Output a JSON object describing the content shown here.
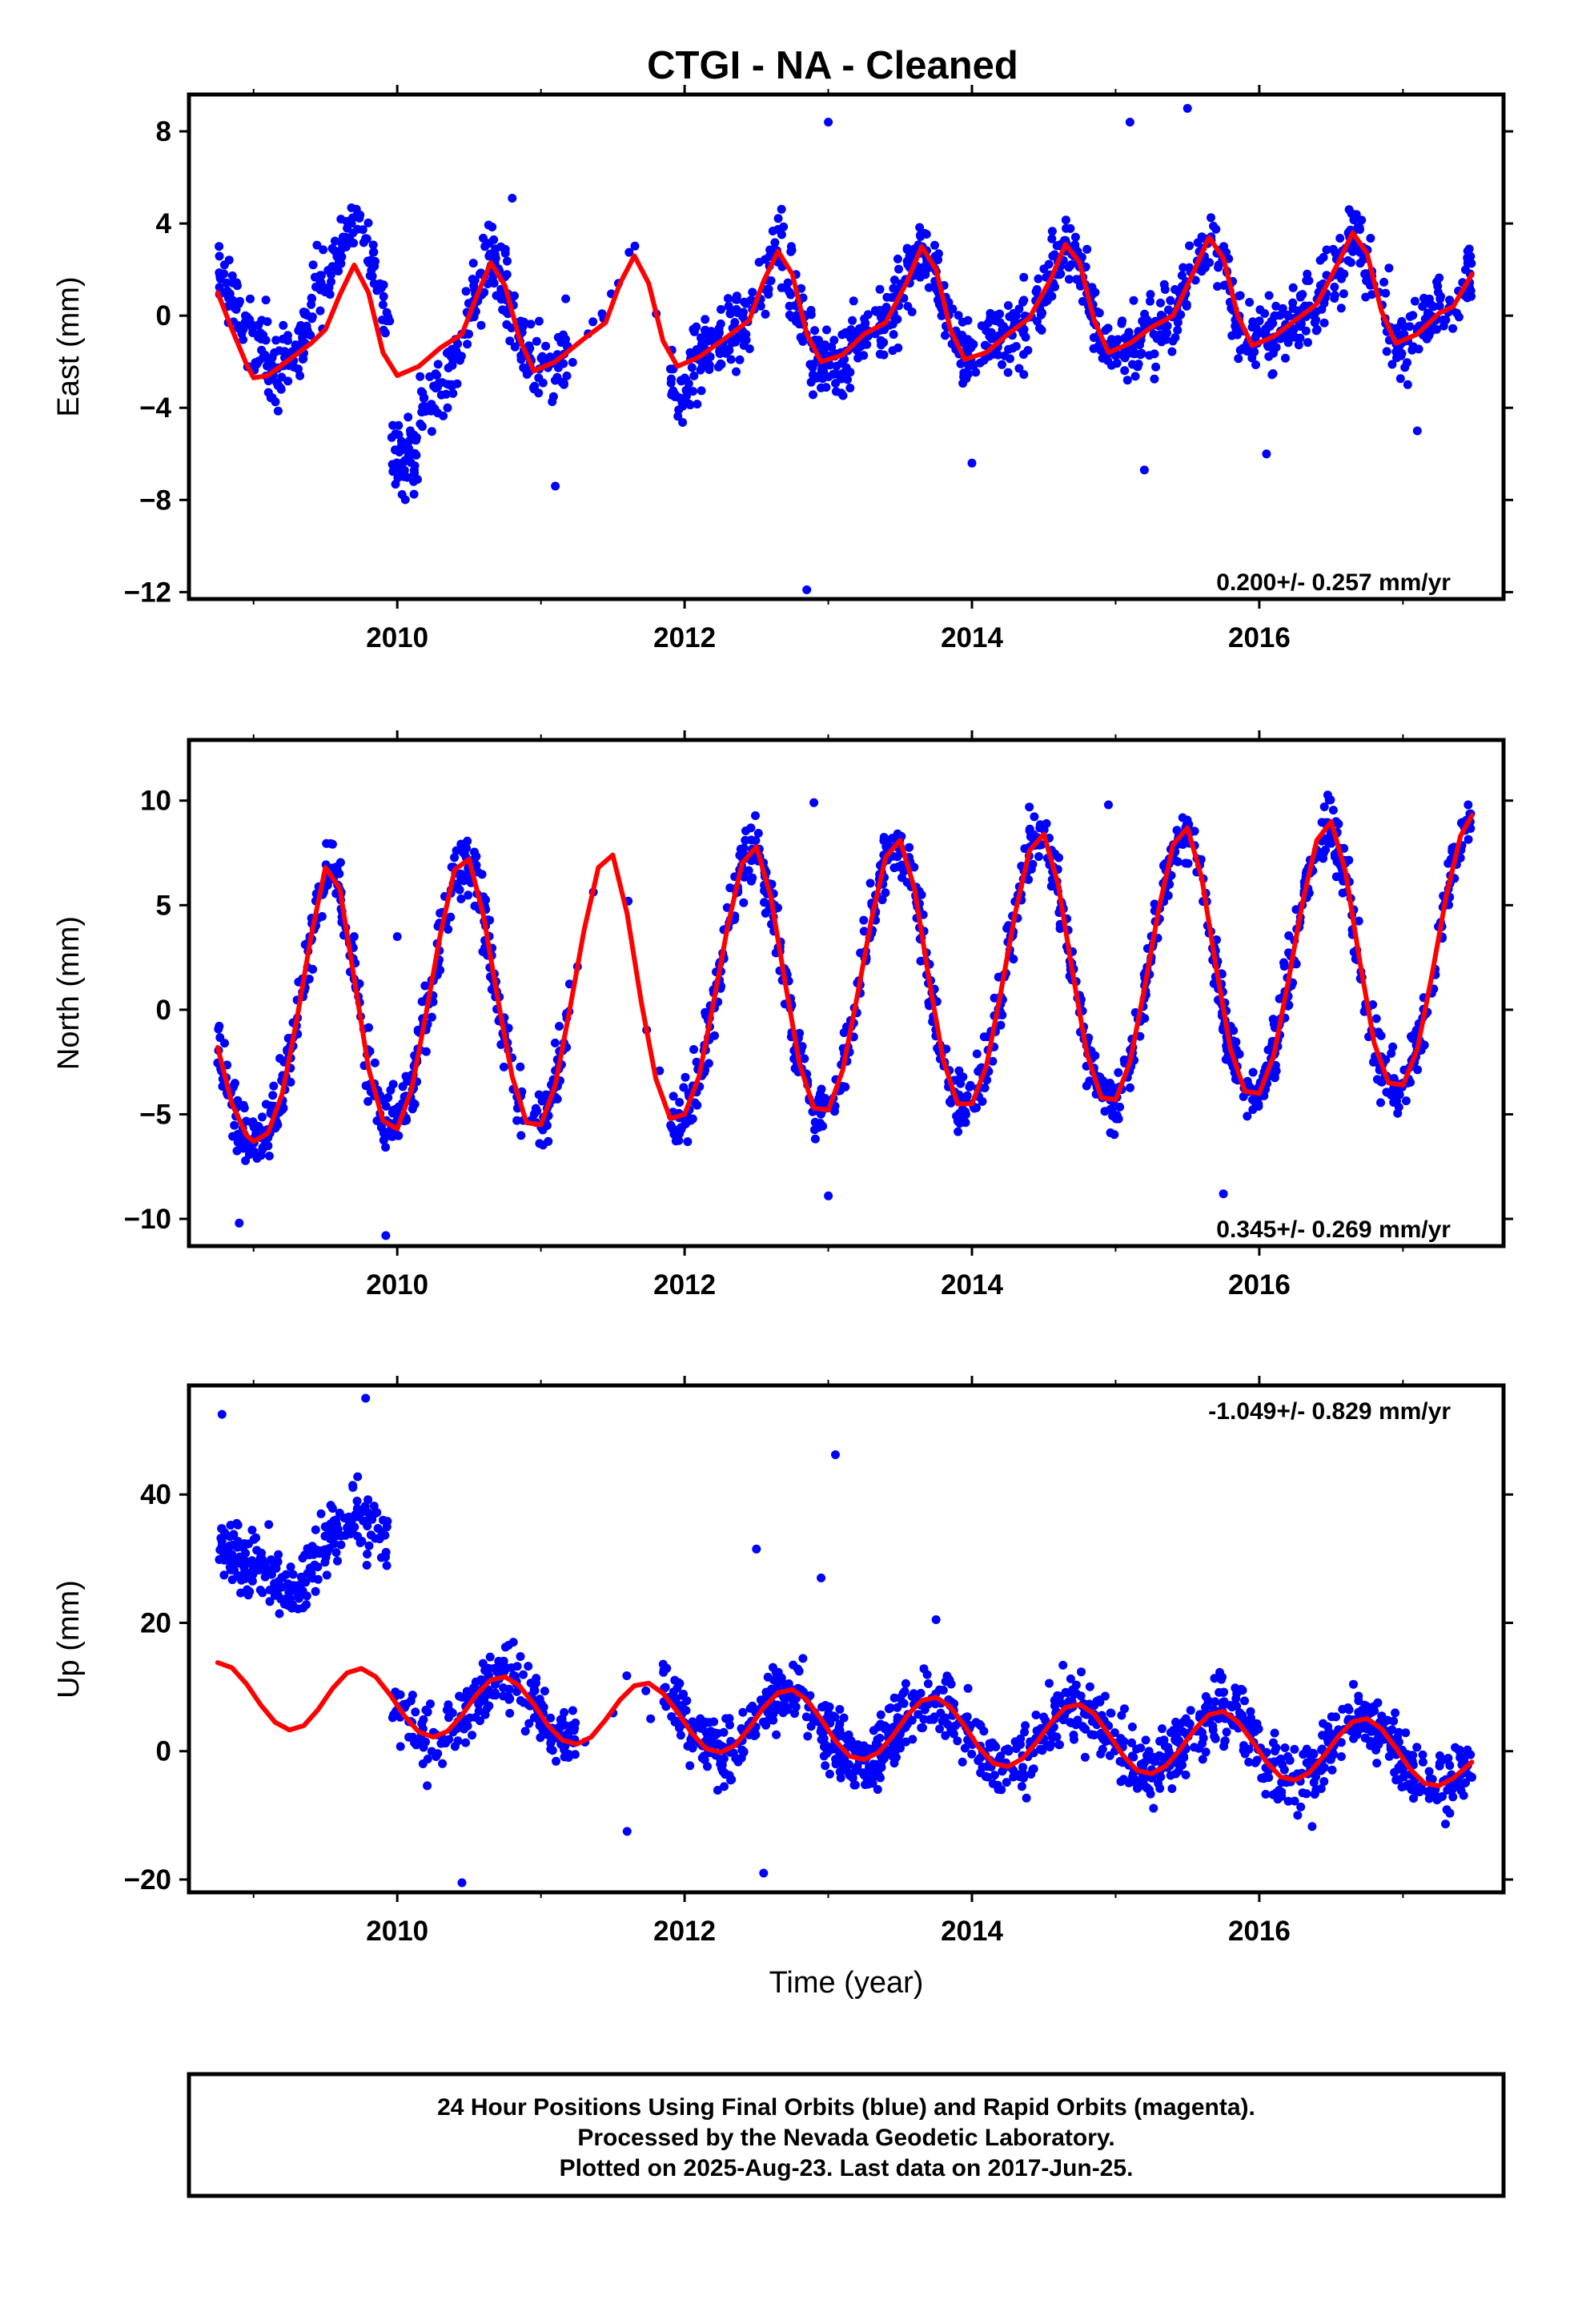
{
  "title": "CTGI  - NA - Cleaned",
  "footer": {
    "line1": "24 Hour Positions Using Final Orbits (blue) and Rapid Orbits (magenta).",
    "line2": "Processed by the Nevada Geodetic Laboratory.",
    "line3": "Plotted on 2025-Aug-23. Last data on 2017-Jun-25."
  },
  "colors": {
    "points": "#0000ff",
    "model": "#ff0000",
    "frame": "#000000"
  },
  "chart_data": [
    {
      "type": "scatter",
      "name": "east",
      "ylabel": "East (mm)",
      "xlabel": "",
      "xlim": [
        2008.55,
        2017.7
      ],
      "ylim": [
        -12.3,
        9.6
      ],
      "xticks": [
        "2010",
        "2012",
        "2014",
        "2016"
      ],
      "yticks": [
        "8",
        "4",
        "0",
        "−4",
        "−8",
        "−12"
      ],
      "rate_label": "0.200+/- 0.257 mm/yr",
      "rate_position": "bottom-right",
      "grid": false,
      "data_start": 2008.75,
      "data_end": 2017.48,
      "gap": [
        2011.2,
        2011.9
      ],
      "model": [
        [
          2008.75,
          1.0
        ],
        [
          2008.85,
          -0.6
        ],
        [
          2008.95,
          -2.1
        ],
        [
          2009.0,
          -2.7
        ],
        [
          2009.1,
          -2.6
        ],
        [
          2009.25,
          -1.9
        ],
        [
          2009.4,
          -1.2
        ],
        [
          2009.5,
          -0.6
        ],
        [
          2009.6,
          0.9
        ],
        [
          2009.7,
          2.2
        ],
        [
          2009.8,
          1.0
        ],
        [
          2009.9,
          -1.6
        ],
        [
          2010.0,
          -2.6
        ],
        [
          2010.15,
          -2.2
        ],
        [
          2010.3,
          -1.4
        ],
        [
          2010.45,
          -0.8
        ],
        [
          2010.55,
          0.8
        ],
        [
          2010.65,
          2.3
        ],
        [
          2010.75,
          1.3
        ],
        [
          2010.85,
          -1.0
        ],
        [
          2010.95,
          -2.4
        ],
        [
          2011.1,
          -2.0
        ],
        [
          2011.3,
          -1.0
        ],
        [
          2011.45,
          -0.3
        ],
        [
          2011.55,
          1.4
        ],
        [
          2011.65,
          2.6
        ],
        [
          2011.75,
          1.4
        ],
        [
          2011.85,
          -1.1
        ],
        [
          2011.95,
          -2.2
        ],
        [
          2012.1,
          -1.8
        ],
        [
          2012.3,
          -0.9
        ],
        [
          2012.45,
          -0.2
        ],
        [
          2012.55,
          1.5
        ],
        [
          2012.65,
          2.8
        ],
        [
          2012.75,
          1.8
        ],
        [
          2012.85,
          -0.8
        ],
        [
          2012.95,
          -2.0
        ],
        [
          2013.1,
          -1.7
        ],
        [
          2013.25,
          -0.8
        ],
        [
          2013.4,
          -0.3
        ],
        [
          2013.55,
          1.5
        ],
        [
          2013.65,
          3.0
        ],
        [
          2013.75,
          2.0
        ],
        [
          2013.85,
          -0.6
        ],
        [
          2013.95,
          -1.9
        ],
        [
          2014.1,
          -1.6
        ],
        [
          2014.25,
          -0.8
        ],
        [
          2014.4,
          -0.1
        ],
        [
          2014.55,
          1.6
        ],
        [
          2014.65,
          3.1
        ],
        [
          2014.75,
          2.3
        ],
        [
          2014.85,
          -0.2
        ],
        [
          2014.95,
          -1.6
        ],
        [
          2015.1,
          -1.2
        ],
        [
          2015.25,
          -0.5
        ],
        [
          2015.4,
          0.0
        ],
        [
          2015.55,
          2.0
        ],
        [
          2015.65,
          3.4
        ],
        [
          2015.75,
          2.5
        ],
        [
          2015.85,
          0.0
        ],
        [
          2015.95,
          -1.3
        ],
        [
          2016.1,
          -0.9
        ],
        [
          2016.25,
          -0.2
        ],
        [
          2016.4,
          0.5
        ],
        [
          2016.55,
          2.3
        ],
        [
          2016.65,
          3.6
        ],
        [
          2016.75,
          2.7
        ],
        [
          2016.85,
          0.2
        ],
        [
          2016.95,
          -1.2
        ],
        [
          2017.1,
          -0.8
        ],
        [
          2017.25,
          0.1
        ],
        [
          2017.35,
          0.4
        ],
        [
          2017.48,
          1.8
        ]
      ],
      "scatter_noise": 1.35,
      "offsets": [
        [
          2008.75,
          2009.1,
          1.5
        ],
        [
          2009.4,
          2009.95,
          2.0
        ],
        [
          2009.95,
          2010.15,
          -4.0
        ],
        [
          2010.15,
          2010.4,
          -1.5
        ],
        [
          2011.9,
          2012.05,
          -1.0
        ],
        [
          2012.7,
          2013.1,
          -0.4
        ]
      ],
      "outliers": [
        [
          2013.0,
          8.4
        ],
        [
          2015.1,
          8.4
        ],
        [
          2015.5,
          9.0
        ],
        [
          2012.85,
          -11.9
        ],
        [
          2011.1,
          -7.4
        ],
        [
          2014.0,
          -6.4
        ],
        [
          2015.2,
          -6.7
        ],
        [
          2016.05,
          -6.0
        ],
        [
          2017.1,
          -5.0
        ],
        [
          2010.8,
          5.1
        ]
      ]
    },
    {
      "type": "scatter",
      "name": "north",
      "ylabel": "North (mm)",
      "xlabel": "",
      "xlim": [
        2008.55,
        2017.7
      ],
      "ylim": [
        -11.3,
        12.9
      ],
      "xticks": [
        "2010",
        "2012",
        "2014",
        "2016"
      ],
      "yticks": [
        "10",
        "5",
        "0",
        "−5",
        "−10"
      ],
      "rate_label": "0.345+/- 0.269 mm/yr",
      "rate_position": "bottom-right",
      "grid": false,
      "data_start": 2008.75,
      "data_end": 2017.48,
      "gap": [
        2011.2,
        2011.9
      ],
      "model": [
        [
          2008.75,
          -1.8
        ],
        [
          2008.85,
          -4.5
        ],
        [
          2008.95,
          -6.0
        ],
        [
          2009.0,
          -6.3
        ],
        [
          2009.1,
          -5.9
        ],
        [
          2009.2,
          -4.0
        ],
        [
          2009.3,
          -0.5
        ],
        [
          2009.4,
          3.5
        ],
        [
          2009.5,
          6.8
        ],
        [
          2009.6,
          5.8
        ],
        [
          2009.7,
          1.5
        ],
        [
          2009.8,
          -2.8
        ],
        [
          2009.9,
          -5.3
        ],
        [
          2010.0,
          -5.7
        ],
        [
          2010.1,
          -3.8
        ],
        [
          2010.2,
          -0.2
        ],
        [
          2010.3,
          3.6
        ],
        [
          2010.4,
          6.7
        ],
        [
          2010.5,
          7.2
        ],
        [
          2010.6,
          4.5
        ],
        [
          2010.7,
          0.5
        ],
        [
          2010.8,
          -3.2
        ],
        [
          2010.9,
          -5.4
        ],
        [
          2011.0,
          -5.5
        ],
        [
          2011.1,
          -3.6
        ],
        [
          2011.2,
          0.0
        ],
        [
          2011.3,
          3.8
        ],
        [
          2011.4,
          6.8
        ],
        [
          2011.5,
          7.4
        ],
        [
          2011.6,
          4.6
        ],
        [
          2011.7,
          0.3
        ],
        [
          2011.8,
          -3.3
        ],
        [
          2011.9,
          -5.2
        ],
        [
          2012.0,
          -5.0
        ],
        [
          2012.1,
          -3.2
        ],
        [
          2012.2,
          0.3
        ],
        [
          2012.3,
          4.0
        ],
        [
          2012.4,
          7.0
        ],
        [
          2012.5,
          7.8
        ],
        [
          2012.6,
          5.4
        ],
        [
          2012.7,
          1.3
        ],
        [
          2012.8,
          -2.6
        ],
        [
          2012.9,
          -4.7
        ],
        [
          2013.0,
          -4.8
        ],
        [
          2013.1,
          -2.9
        ],
        [
          2013.2,
          0.6
        ],
        [
          2013.3,
          4.3
        ],
        [
          2013.4,
          7.3
        ],
        [
          2013.5,
          8.1
        ],
        [
          2013.6,
          5.8
        ],
        [
          2013.7,
          1.5
        ],
        [
          2013.8,
          -2.4
        ],
        [
          2013.9,
          -4.5
        ],
        [
          2014.0,
          -4.5
        ],
        [
          2014.1,
          -2.7
        ],
        [
          2014.2,
          0.8
        ],
        [
          2014.3,
          4.6
        ],
        [
          2014.4,
          7.6
        ],
        [
          2014.5,
          8.4
        ],
        [
          2014.6,
          6.0
        ],
        [
          2014.7,
          1.8
        ],
        [
          2014.8,
          -2.1
        ],
        [
          2014.9,
          -4.2
        ],
        [
          2015.0,
          -4.3
        ],
        [
          2015.1,
          -2.5
        ],
        [
          2015.2,
          1.0
        ],
        [
          2015.3,
          4.8
        ],
        [
          2015.4,
          7.9
        ],
        [
          2015.5,
          8.7
        ],
        [
          2015.6,
          6.3
        ],
        [
          2015.7,
          2.0
        ],
        [
          2015.8,
          -1.9
        ],
        [
          2015.9,
          -3.9
        ],
        [
          2016.0,
          -4.0
        ],
        [
          2016.1,
          -2.2
        ],
        [
          2016.2,
          1.3
        ],
        [
          2016.3,
          5.1
        ],
        [
          2016.4,
          8.1
        ],
        [
          2016.5,
          9.0
        ],
        [
          2016.6,
          6.6
        ],
        [
          2016.7,
          2.3
        ],
        [
          2016.8,
          -1.6
        ],
        [
          2016.9,
          -3.5
        ],
        [
          2017.0,
          -3.6
        ],
        [
          2017.1,
          -1.9
        ],
        [
          2017.2,
          1.6
        ],
        [
          2017.3,
          5.4
        ],
        [
          2017.4,
          8.3
        ],
        [
          2017.48,
          9.3
        ]
      ],
      "scatter_noise": 1.25,
      "offsets": [],
      "outliers": [
        [
          2009.92,
          -10.8
        ],
        [
          2012.9,
          9.9
        ],
        [
          2014.95,
          9.8
        ],
        [
          2009.7,
          3.5
        ],
        [
          2010.0,
          3.5
        ],
        [
          2008.9,
          -10.2
        ],
        [
          2015.75,
          -8.8
        ],
        [
          2013.0,
          -8.9
        ]
      ]
    },
    {
      "type": "scatter",
      "name": "up",
      "ylabel": "Up (mm)",
      "xlabel": "Time (year)",
      "xlim": [
        2008.55,
        2017.7
      ],
      "ylim": [
        -22,
        57
      ],
      "xticks": [
        "2010",
        "2012",
        "2014",
        "2016"
      ],
      "yticks": [
        "40",
        "20",
        "0",
        "−20"
      ],
      "rate_label": "-1.049+/- 0.829 mm/yr",
      "rate_position": "top-right",
      "grid": false,
      "data_start": 2008.75,
      "data_end": 2017.48,
      "gap": [
        2011.25,
        2011.85
      ],
      "model": [
        [
          2008.75,
          13.8
        ],
        [
          2008.85,
          13.0
        ],
        [
          2008.95,
          10.5
        ],
        [
          2009.05,
          7.2
        ],
        [
          2009.15,
          4.5
        ],
        [
          2009.25,
          3.3
        ],
        [
          2009.35,
          4.0
        ],
        [
          2009.45,
          6.5
        ],
        [
          2009.55,
          9.8
        ],
        [
          2009.65,
          12.2
        ],
        [
          2009.75,
          12.9
        ],
        [
          2009.85,
          11.6
        ],
        [
          2009.95,
          8.8
        ],
        [
          2010.05,
          5.5
        ],
        [
          2010.15,
          3.0
        ],
        [
          2010.25,
          2.2
        ],
        [
          2010.35,
          3.1
        ],
        [
          2010.45,
          5.6
        ],
        [
          2010.55,
          8.8
        ],
        [
          2010.65,
          11.1
        ],
        [
          2010.75,
          11.6
        ],
        [
          2010.85,
          10.2
        ],
        [
          2010.95,
          7.3
        ],
        [
          2011.05,
          4.0
        ],
        [
          2011.15,
          1.7
        ],
        [
          2011.25,
          1.1
        ],
        [
          2011.35,
          2.2
        ],
        [
          2011.45,
          4.9
        ],
        [
          2011.55,
          8.0
        ],
        [
          2011.65,
          10.2
        ],
        [
          2011.75,
          10.6
        ],
        [
          2011.85,
          9.0
        ],
        [
          2011.95,
          6.1
        ],
        [
          2012.05,
          2.8
        ],
        [
          2012.15,
          0.4
        ],
        [
          2012.25,
          -0.2
        ],
        [
          2012.35,
          0.9
        ],
        [
          2012.45,
          3.6
        ],
        [
          2012.55,
          6.8
        ],
        [
          2012.65,
          9.1
        ],
        [
          2012.75,
          9.6
        ],
        [
          2012.85,
          8.0
        ],
        [
          2012.95,
          5.0
        ],
        [
          2013.05,
          1.6
        ],
        [
          2013.15,
          -0.8
        ],
        [
          2013.25,
          -1.3
        ],
        [
          2013.35,
          -0.2
        ],
        [
          2013.45,
          2.4
        ],
        [
          2013.55,
          5.6
        ],
        [
          2013.65,
          7.9
        ],
        [
          2013.75,
          8.4
        ],
        [
          2013.85,
          6.9
        ],
        [
          2013.95,
          3.9
        ],
        [
          2014.05,
          0.5
        ],
        [
          2014.15,
          -1.9
        ],
        [
          2014.25,
          -2.4
        ],
        [
          2014.35,
          -1.2
        ],
        [
          2014.45,
          1.4
        ],
        [
          2014.55,
          4.5
        ],
        [
          2014.65,
          6.8
        ],
        [
          2014.75,
          7.3
        ],
        [
          2014.85,
          5.8
        ],
        [
          2014.95,
          2.7
        ],
        [
          2015.05,
          -0.6
        ],
        [
          2015.15,
          -3.0
        ],
        [
          2015.25,
          -3.5
        ],
        [
          2015.35,
          -2.3
        ],
        [
          2015.45,
          0.3
        ],
        [
          2015.55,
          3.4
        ],
        [
          2015.65,
          5.7
        ],
        [
          2015.75,
          6.2
        ],
        [
          2015.85,
          4.6
        ],
        [
          2015.95,
          1.6
        ],
        [
          2016.05,
          -1.7
        ],
        [
          2016.15,
          -4.0
        ],
        [
          2016.25,
          -4.5
        ],
        [
          2016.35,
          -3.3
        ],
        [
          2016.45,
          -0.7
        ],
        [
          2016.55,
          2.3
        ],
        [
          2016.65,
          4.6
        ],
        [
          2016.75,
          5.1
        ],
        [
          2016.85,
          3.5
        ],
        [
          2016.95,
          0.5
        ],
        [
          2017.05,
          -2.8
        ],
        [
          2017.15,
          -5.0
        ],
        [
          2017.25,
          -5.4
        ],
        [
          2017.35,
          -4.2
        ],
        [
          2017.48,
          -1.7
        ]
      ],
      "scatter_noise": 4.5,
      "offsets": [
        [
          2008.75,
          2009.0,
          18.0
        ],
        [
          2009.0,
          2009.4,
          22.0
        ],
        [
          2009.4,
          2009.95,
          24.0
        ]
      ],
      "outliers": [
        [
          2012.5,
          31.5
        ],
        [
          2013.05,
          46.2
        ],
        [
          2012.95,
          27.0
        ],
        [
          2013.75,
          20.5
        ],
        [
          2012.55,
          -19.0
        ],
        [
          2010.45,
          -20.5
        ],
        [
          2009.78,
          55.0
        ],
        [
          2008.78,
          52.5
        ],
        [
          2011.6,
          -12.5
        ]
      ]
    }
  ]
}
